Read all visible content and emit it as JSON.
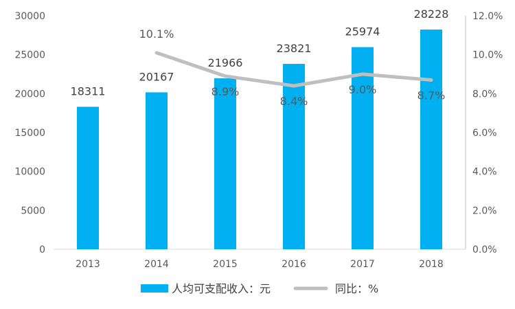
{
  "chart_data": {
    "type": "bar",
    "categories": [
      "2013",
      "2014",
      "2015",
      "2016",
      "2017",
      "2018"
    ],
    "series": [
      {
        "name": "人均可支配收入：元",
        "type": "bar",
        "axis": "left",
        "values": [
          18311,
          20167,
          21966,
          23821,
          25974,
          28228
        ],
        "labels": [
          "18311",
          "20167",
          "21966",
          "23821",
          "25974",
          "28228"
        ],
        "color": "#00B0F0"
      },
      {
        "name": "同比：%",
        "type": "line",
        "axis": "right",
        "values": [
          null,
          10.1,
          8.9,
          8.4,
          9.0,
          8.7
        ],
        "labels": [
          "",
          "10.1%",
          "8.9%",
          "8.4%",
          "9.0%",
          "8.7%"
        ],
        "color": "#BFBFBF"
      }
    ],
    "left_axis": {
      "ylim": [
        0,
        30000
      ],
      "ticks": [
        "0",
        "5000",
        "10000",
        "15000",
        "20000",
        "25000",
        "30000"
      ]
    },
    "right_axis": {
      "ylim": [
        0,
        12
      ],
      "ticks": [
        "0.0%",
        "2.0%",
        "4.0%",
        "6.0%",
        "8.0%",
        "10.0%",
        "12.0%"
      ]
    },
    "grid": false,
    "legend_position": "bottom"
  }
}
